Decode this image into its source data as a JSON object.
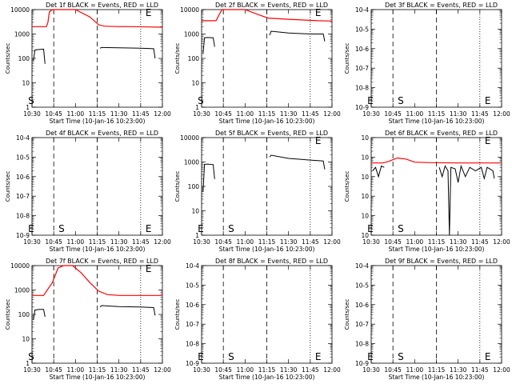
{
  "chart_data": [
    {
      "type": "line",
      "title": "Det 1f BLACK = Events, RED = LLD",
      "xlabel": "Start Time (10-Jan-16 10:23:00)",
      "ylabel": "Counts/sec",
      "scale": "log",
      "xtick_labels": [
        "10:30",
        "10:45",
        "11:00",
        "11:15",
        "11:30",
        "11:45",
        "12:00"
      ],
      "ytick_labels": [
        "1",
        "10",
        "100",
        "1000",
        "10000"
      ],
      "markers": [
        "S",
        "E"
      ],
      "series": [
        {
          "color": "#ff0000",
          "points": [
            [
              0,
              2000
            ],
            [
              10,
              2000
            ],
            [
              11,
              3000
            ],
            [
              12,
              8000
            ],
            [
              14,
              15000
            ],
            [
              20,
              15000
            ],
            [
              30,
              10000
            ],
            [
              40,
              5000
            ],
            [
              46,
              2400
            ],
            [
              50,
              2100
            ],
            [
              60,
              2000
            ],
            [
              70,
              2000
            ],
            [
              80,
              1950
            ],
            [
              90,
              1900
            ]
          ]
        },
        {
          "color": "#000000",
          "segments": [
            [
              [
                1,
                80
              ],
              [
                2,
                220
              ],
              [
                4,
                230
              ],
              [
                8,
                240
              ],
              [
                9,
                60
              ]
            ],
            [
              [
                47,
                260
              ],
              [
                48,
                280
              ],
              [
                60,
                270
              ],
              [
                75,
                260
              ],
              [
                84,
                250
              ],
              [
                85,
                100
              ]
            ]
          ]
        }
      ]
    },
    {
      "type": "line",
      "title": "Det 2f BLACK = Events, RED = LLD",
      "xlabel": "Start Time (10-Jan-16 10:23:00)",
      "ylabel": "Counts/sec",
      "scale": "log",
      "xtick_labels": [
        "10:30",
        "10:45",
        "11:00",
        "11:15",
        "11:30",
        "11:45",
        "12:00"
      ],
      "ytick_labels": [
        "1",
        "10",
        "100",
        "1000",
        "10000"
      ],
      "markers": [
        "S",
        "E"
      ],
      "series": [
        {
          "color": "#ff0000",
          "points": [
            [
              0,
              3500
            ],
            [
              10,
              3500
            ],
            [
              12,
              6000
            ],
            [
              14,
              12000
            ],
            [
              30,
              10000
            ],
            [
              40,
              6000
            ],
            [
              46,
              4500
            ],
            [
              60,
              4000
            ],
            [
              80,
              3500
            ],
            [
              90,
              3400
            ]
          ]
        },
        {
          "color": "#000000",
          "segments": [
            [
              [
                1,
                150
              ],
              [
                2,
                700
              ],
              [
                4,
                720
              ],
              [
                8,
                700
              ],
              [
                9,
                300
              ]
            ],
            [
              [
                47,
                900
              ],
              [
                48,
                1300
              ],
              [
                60,
                1100
              ],
              [
                75,
                1000
              ],
              [
                84,
                1000
              ],
              [
                85,
                500
              ]
            ]
          ]
        }
      ]
    },
    {
      "type": "line",
      "title": "Det 3f BLACK = Events, RED = LLD",
      "xlabel": "Start Time (10-Jan-16 10:23:00)",
      "ylabel": "Counts/sec",
      "scale": "log",
      "xtick_labels": [
        "10:30",
        "10:45",
        "11:00",
        "11:15",
        "11:30",
        "11:45",
        "12:00"
      ],
      "ytick_labels": [
        "10-9",
        "10-8",
        "10-7",
        "10-6",
        "10-5",
        "10-4"
      ],
      "markers": [
        "E",
        "S",
        "E"
      ],
      "series": []
    },
    {
      "type": "line",
      "title": "Det 4f BLACK = Events, RED = LLD",
      "xlabel": "Start Time (10-Jan-16 10:23:00)",
      "ylabel": "Counts/sec",
      "scale": "log",
      "xtick_labels": [
        "10:30",
        "10:45",
        "11:00",
        "11:15",
        "11:30",
        "11:45",
        "12:00"
      ],
      "ytick_labels": [
        "10-9",
        "10-8",
        "10-7",
        "10-6",
        "10-5",
        "10-4"
      ],
      "markers": [
        "E",
        "S",
        "E"
      ],
      "series": []
    },
    {
      "type": "line",
      "title": "Det 5f BLACK = Events, RED = LLD",
      "xlabel": "Start Time (10-Jan-16 10:23:00)",
      "ylabel": "Counts/sec",
      "scale": "log",
      "xtick_labels": [
        "10:30",
        "10:45",
        "11:00",
        "11:15",
        "11:30",
        "11:45",
        "12:00"
      ],
      "ytick_labels": [
        "1",
        "10",
        "100",
        "1000",
        "10000"
      ],
      "markers": [
        "E",
        "S",
        "E"
      ],
      "series": [
        {
          "color": "#000000",
          "segments": [
            [
              [
                1,
                60
              ],
              [
                2,
                800
              ],
              [
                4,
                820
              ],
              [
                8,
                780
              ],
              [
                9,
                200
              ]
            ],
            [
              [
                47,
                1600
              ],
              [
                48,
                1900
              ],
              [
                60,
                1400
              ],
              [
                75,
                1200
              ],
              [
                84,
                1100
              ],
              [
                85,
                500
              ]
            ]
          ]
        }
      ]
    },
    {
      "type": "line",
      "title": "Det 6f BLACK = Events, RED = LLD",
      "xlabel": "Start Time (10-Jan-16 10:23:00)",
      "ylabel": "Counts/sec",
      "scale": "log",
      "xtick_labels": [
        "10:30",
        "10:45",
        "11:00",
        "11:15",
        "11:30",
        "11:45",
        "12:00"
      ],
      "ytick_labels": [
        "10",
        "10",
        "10",
        "10",
        "10",
        "10"
      ],
      "markers": [
        "E",
        "S",
        "E"
      ],
      "series": [
        {
          "color": "#ff0000",
          "points": [
            [
              0,
              5000
            ],
            [
              8,
              5000
            ],
            [
              12,
              6000
            ],
            [
              18,
              9000
            ],
            [
              24,
              8000
            ],
            [
              30,
              5500
            ],
            [
              40,
              5200
            ],
            [
              60,
              5000
            ],
            [
              90,
              5000
            ]
          ]
        },
        {
          "color": "#000000",
          "segments": [
            [
              [
                1,
                2000
              ],
              [
                3,
                3000
              ],
              [
                5,
                1000
              ],
              [
                7,
                3500
              ],
              [
                9,
                3000
              ]
            ],
            [
              [
                47,
                3000
              ],
              [
                49,
                1000
              ],
              [
                51,
                3500
              ],
              [
                53,
                2000
              ],
              [
                54,
                1
              ],
              [
                55,
                3000
              ],
              [
                58,
                2500
              ],
              [
                60,
                500
              ],
              [
                62,
                3500
              ],
              [
                65,
                1000
              ],
              [
                68,
                3000
              ],
              [
                72,
                2000
              ],
              [
                76,
                3000
              ],
              [
                78,
                800
              ],
              [
                80,
                3000
              ],
              [
                84,
                2000
              ],
              [
                85,
                800
              ]
            ]
          ]
        }
      ]
    },
    {
      "type": "line",
      "title": "Det 7f BLACK = Events, RED = LLD",
      "xlabel": "Start Time (10-Jan-16 10:23:00)",
      "ylabel": "Counts/sec",
      "scale": "log",
      "xtick_labels": [
        "10:30",
        "10:45",
        "11:00",
        "11:15",
        "11:30",
        "11:45",
        "12:00"
      ],
      "ytick_labels": [
        "1",
        "10",
        "100",
        "1000",
        "10000"
      ],
      "markers": [
        "S",
        "E"
      ],
      "series": [
        {
          "color": "#ff0000",
          "points": [
            [
              0,
              600
            ],
            [
              8,
              600
            ],
            [
              10,
              900
            ],
            [
              14,
              2000
            ],
            [
              18,
              8000
            ],
            [
              22,
              15000
            ],
            [
              28,
              10000
            ],
            [
              34,
              5000
            ],
            [
              40,
              2000
            ],
            [
              46,
              900
            ],
            [
              52,
              650
            ],
            [
              60,
              600
            ],
            [
              75,
              600
            ],
            [
              90,
              600
            ]
          ]
        },
        {
          "color": "#000000",
          "segments": [
            [
              [
                1,
                60
              ],
              [
                2,
                150
              ],
              [
                5,
                160
              ],
              [
                8,
                160
              ],
              [
                9,
                80
              ]
            ],
            [
              [
                47,
                200
              ],
              [
                48,
                230
              ],
              [
                60,
                210
              ],
              [
                75,
                200
              ],
              [
                84,
                190
              ],
              [
                85,
                90
              ]
            ]
          ]
        }
      ]
    },
    {
      "type": "line",
      "title": "Det 8f BLACK = Events, RED = LLD",
      "xlabel": "Start Time (10-Jan-16 10:23:00)",
      "ylabel": "Counts/sec",
      "scale": "log",
      "xtick_labels": [
        "10:30",
        "10:45",
        "11:00",
        "11:15",
        "11:30",
        "11:45",
        "12:00"
      ],
      "ytick_labels": [
        "10-9",
        "10-8",
        "10-7",
        "10-6",
        "10-5",
        "10-4"
      ],
      "markers": [
        "E",
        "S",
        "E"
      ],
      "series": []
    },
    {
      "type": "line",
      "title": "Det 9f BLACK = Events, RED = LLD",
      "xlabel": "Start Time (10-Jan-16 10:23:00)",
      "ylabel": "Counts/sec",
      "scale": "log",
      "xtick_labels": [
        "10:30",
        "10:45",
        "11:00",
        "11:15",
        "11:30",
        "11:45",
        "12:00"
      ],
      "ytick_labels": [
        "10-9",
        "10-8",
        "10-7",
        "10-6",
        "10-5",
        "10-4"
      ],
      "markers": [
        "E",
        "S",
        "E"
      ],
      "series": []
    }
  ]
}
